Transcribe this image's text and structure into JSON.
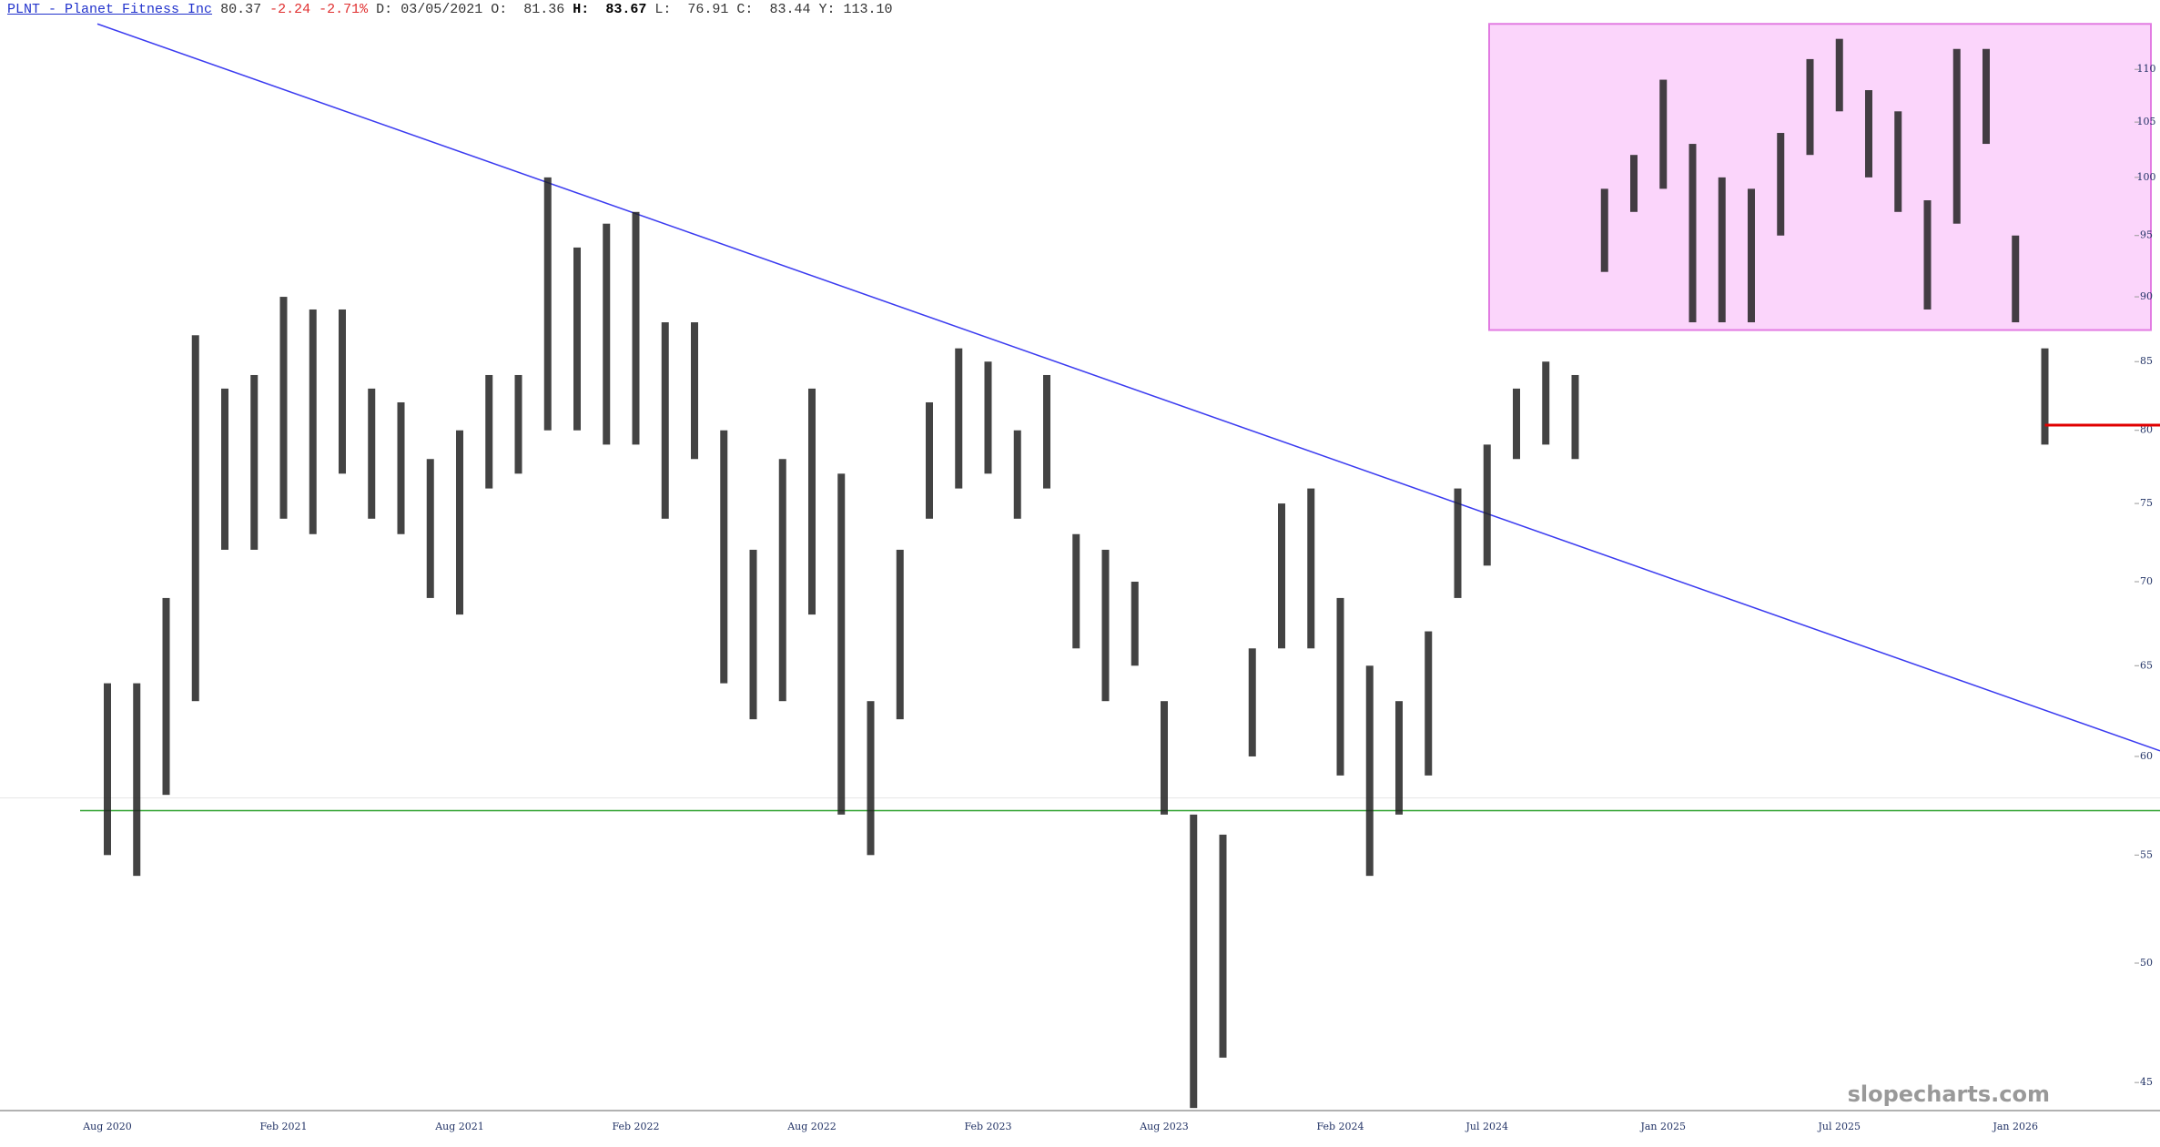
{
  "header": {
    "symbol": "PLNT - Planet Fitness Inc",
    "price": 80.37,
    "change": -2.24,
    "change_pct": "-2.71%",
    "d_label": "D:",
    "date": "03/05/2021",
    "o_label": "O:",
    "open": 81.36,
    "h_label": "H:",
    "high": 83.67,
    "l_label": "L:",
    "low": 76.91,
    "c_label": "C:",
    "close": 83.44,
    "y_label": "Y:",
    "y_value": "113.10"
  },
  "watermark": "slopecharts.com",
  "chart_data": {
    "type": "range-bar",
    "log_scale": true,
    "color": "#222222",
    "categories": [
      "Aug 2020",
      null,
      null,
      null,
      null,
      null,
      "Feb 2021",
      null,
      null,
      null,
      null,
      null,
      "Aug 2021",
      null,
      null,
      null,
      null,
      null,
      "Feb 2022",
      null,
      null,
      null,
      null,
      null,
      "Aug 2022",
      null,
      null,
      null,
      null,
      null,
      "Feb 2023",
      null,
      null,
      null,
      null,
      null,
      "Aug 2023",
      null,
      null,
      null,
      null,
      null,
      "Feb 2024",
      null,
      null,
      null,
      null,
      "Jul 2024",
      null,
      null,
      null,
      null,
      null,
      "Jan 2025",
      null,
      null,
      null,
      null,
      null,
      "Jul 2025",
      null,
      null,
      null,
      null,
      null,
      "Jan 2026",
      null
    ],
    "high": [
      64,
      64,
      69,
      87,
      83,
      84,
      90,
      89,
      89,
      83,
      82,
      78,
      80,
      84,
      84,
      100,
      94,
      96,
      97,
      88,
      88,
      80,
      72,
      78,
      83,
      77,
      63,
      72,
      82,
      86,
      85,
      80,
      84,
      73,
      72,
      70,
      63,
      57,
      56,
      66,
      75,
      76,
      69,
      65,
      63,
      67,
      76,
      79,
      83,
      85,
      84,
      99,
      102,
      109,
      103,
      100,
      99,
      104,
      111,
      113,
      108,
      106,
      98,
      112,
      112,
      95,
      86
    ],
    "low": [
      55,
      54,
      58,
      63,
      72,
      72,
      74,
      73,
      77,
      74,
      73,
      69,
      68,
      76,
      77,
      80,
      80,
      79,
      79,
      74,
      78,
      64,
      62,
      63,
      68,
      57,
      55,
      62,
      74,
      76,
      77,
      74,
      76,
      66,
      63,
      65,
      57,
      44,
      46,
      60,
      66,
      66,
      59,
      54,
      57,
      59,
      69,
      71,
      78,
      79,
      78,
      92,
      97,
      99,
      88,
      88,
      88,
      95,
      102,
      106,
      100,
      97,
      89,
      96,
      103,
      88,
      79
    ],
    "ylim": [
      43.9,
      114.8
    ],
    "yticks": [
      45,
      50,
      55,
      60,
      65,
      70,
      75,
      80,
      85,
      90,
      95,
      100,
      105,
      110
    ],
    "trendline": {
      "values": [
        114.5,
        60.3
      ],
      "color": "#3b3bf0"
    },
    "support": {
      "value": 57.2,
      "color": "#2ca02c"
    },
    "last_price_color": "#e00000",
    "highlight": {
      "low": 87.4,
      "high": 114.5,
      "color": "#fbd5fb",
      "border": "#e27be2"
    }
  }
}
